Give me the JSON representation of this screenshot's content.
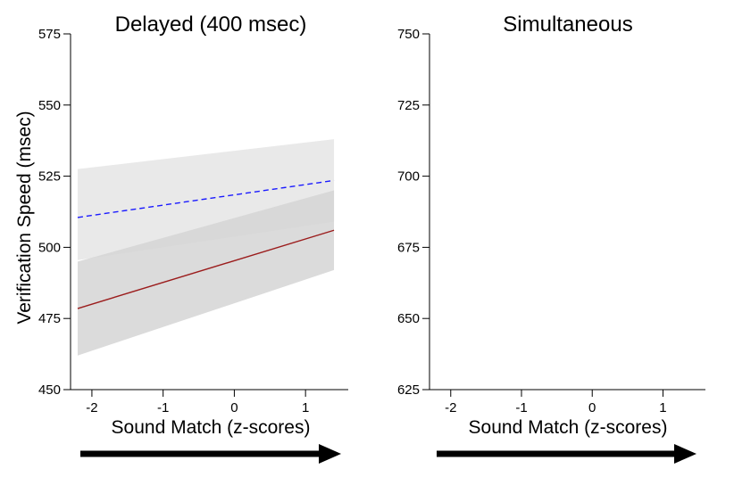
{
  "chart_data": [
    {
      "type": "line",
      "title": "Delayed (400 msec)",
      "xlabel": "Sound Match (z-scores)",
      "ylabel": "Verification Speed (msec)",
      "xlim": [
        -2.3,
        1.6
      ],
      "ylim": [
        450,
        575
      ],
      "xticks": [
        "-2",
        "-1",
        "0",
        "1"
      ],
      "xtick_values": [
        -2,
        -1,
        0,
        1
      ],
      "yticks": [
        "450",
        "475",
        "500",
        "525",
        "550",
        "575"
      ],
      "ytick_values": [
        450,
        475,
        500,
        525,
        550,
        575
      ],
      "colors": {
        "dashed": "#1a1aff",
        "solid": "#9b1c1c",
        "band_light": "#e9e9e9",
        "band_dark": "#d5d5d5"
      },
      "series": [
        {
          "style": "dashed",
          "x": [
            -2.2,
            1.4
          ],
          "y": [
            510.5,
            523.5
          ],
          "ci_lower": [
            495.5,
            509
          ],
          "ci_upper": [
            527.5,
            538
          ]
        },
        {
          "style": "solid",
          "x": [
            -2.2,
            1.4
          ],
          "y": [
            478.5,
            506
          ],
          "ci_lower": [
            462,
            492
          ],
          "ci_upper": [
            495,
            520
          ]
        }
      ]
    },
    {
      "type": "line",
      "title": "Simultaneous",
      "xlabel": "Sound Match (z-scores)",
      "ylabel": "",
      "xlim": [
        -2.3,
        1.6
      ],
      "ylim": [
        625,
        750
      ],
      "xticks": [
        "-2",
        "-1",
        "0",
        "1"
      ],
      "xtick_values": [
        -2,
        -1,
        0,
        1
      ],
      "yticks": [
        "625",
        "650",
        "675",
        "700",
        "725",
        "750"
      ],
      "ytick_values": [
        625,
        650,
        675,
        700,
        725,
        750
      ],
      "series": []
    }
  ]
}
